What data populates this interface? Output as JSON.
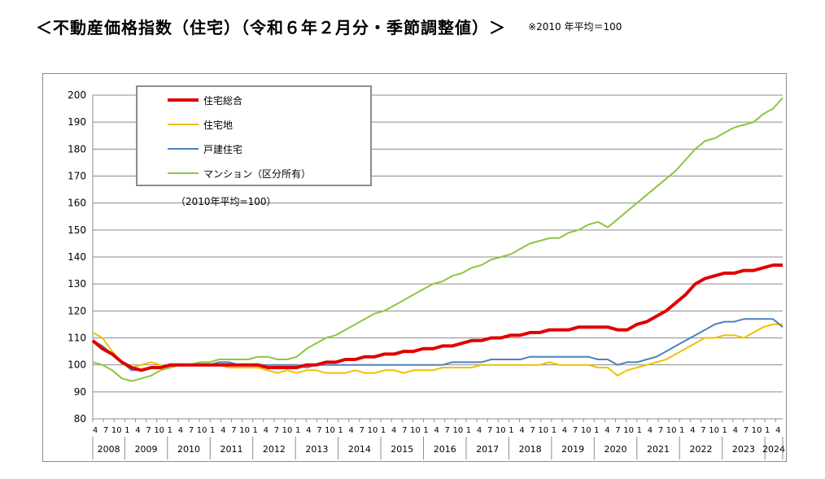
{
  "header": {
    "title": "＜不動産価格指数（住宅）（令和６年２月分・季節調整値）＞",
    "note": "※2010 年平均＝100"
  },
  "chart_data": {
    "type": "line",
    "annotation": "（2010年平均=100）",
    "ylim": [
      80,
      200
    ],
    "yticks": [
      80,
      90,
      100,
      110,
      120,
      130,
      140,
      150,
      160,
      170,
      180,
      190,
      200
    ],
    "grid": true,
    "legend_position": "top-left",
    "month_tick_labels": [
      "4",
      "7",
      "10",
      "1"
    ],
    "years": [
      "2008",
      "2009",
      "2010",
      "2011",
      "2012",
      "2013",
      "2014",
      "2015",
      "2016",
      "2017",
      "2018",
      "2019",
      "2020",
      "2021",
      "2022",
      "2023",
      "2024"
    ],
    "x_start": "2008-04",
    "x_end": "2024-02",
    "x_frequency": "quarterly",
    "series": [
      {
        "name": "住宅総合",
        "color": "#e00000",
        "values": [
          109,
          106,
          104,
          101,
          99,
          98,
          99,
          99,
          100,
          100,
          100,
          100,
          100,
          100,
          100,
          100,
          100,
          100,
          99,
          99,
          99,
          99,
          100,
          100,
          101,
          101,
          102,
          102,
          103,
          103,
          104,
          104,
          105,
          105,
          106,
          106,
          107,
          107,
          108,
          109,
          109,
          110,
          110,
          111,
          111,
          112,
          112,
          113,
          113,
          113,
          114,
          114,
          114,
          114,
          113,
          113,
          115,
          116,
          118,
          120,
          123,
          126,
          130,
          132,
          133,
          134,
          134,
          135,
          135,
          136,
          137,
          137
        ]
      },
      {
        "name": "住宅地",
        "color": "#f0c000",
        "values": [
          112,
          110,
          105,
          101,
          99,
          100,
          101,
          100,
          99,
          100,
          100,
          100,
          100,
          100,
          99,
          99,
          99,
          99,
          98,
          97,
          98,
          97,
          98,
          98,
          97,
          97,
          97,
          98,
          97,
          97,
          98,
          98,
          97,
          98,
          98,
          98,
          99,
          99,
          99,
          99,
          100,
          100,
          100,
          100,
          100,
          100,
          100,
          101,
          100,
          100,
          100,
          100,
          99,
          99,
          96,
          98,
          99,
          100,
          101,
          102,
          104,
          106,
          108,
          110,
          110,
          111,
          111,
          110,
          112,
          114,
          115,
          115
        ]
      },
      {
        "name": "戸建住宅",
        "color": "#4f81bd",
        "values": [
          109,
          107,
          104,
          101,
          98,
          98,
          99,
          99,
          100,
          100,
          100,
          100,
          100,
          101,
          101,
          100,
          100,
          100,
          100,
          100,
          100,
          100,
          99,
          100,
          100,
          100,
          100,
          100,
          100,
          100,
          100,
          100,
          100,
          100,
          100,
          100,
          100,
          101,
          101,
          101,
          101,
          102,
          102,
          102,
          102,
          103,
          103,
          103,
          103,
          103,
          103,
          103,
          102,
          102,
          100,
          101,
          101,
          102,
          103,
          105,
          107,
          109,
          111,
          113,
          115,
          116,
          116,
          117,
          117,
          117,
          117,
          114
        ]
      },
      {
        "name": "マンション（区分所有）",
        "color": "#8dc63f",
        "values": [
          101,
          100,
          98,
          95,
          94,
          95,
          96,
          98,
          99,
          100,
          100,
          101,
          101,
          102,
          102,
          102,
          102,
          103,
          103,
          102,
          102,
          103,
          106,
          108,
          110,
          111,
          113,
          115,
          117,
          119,
          120,
          122,
          124,
          126,
          128,
          130,
          131,
          133,
          134,
          136,
          137,
          139,
          140,
          141,
          143,
          145,
          146,
          147,
          147,
          149,
          150,
          152,
          153,
          151,
          154,
          157,
          160,
          163,
          166,
          169,
          172,
          176,
          180,
          183,
          184,
          186,
          188,
          189,
          190,
          193,
          195,
          199
        ]
      }
    ]
  }
}
